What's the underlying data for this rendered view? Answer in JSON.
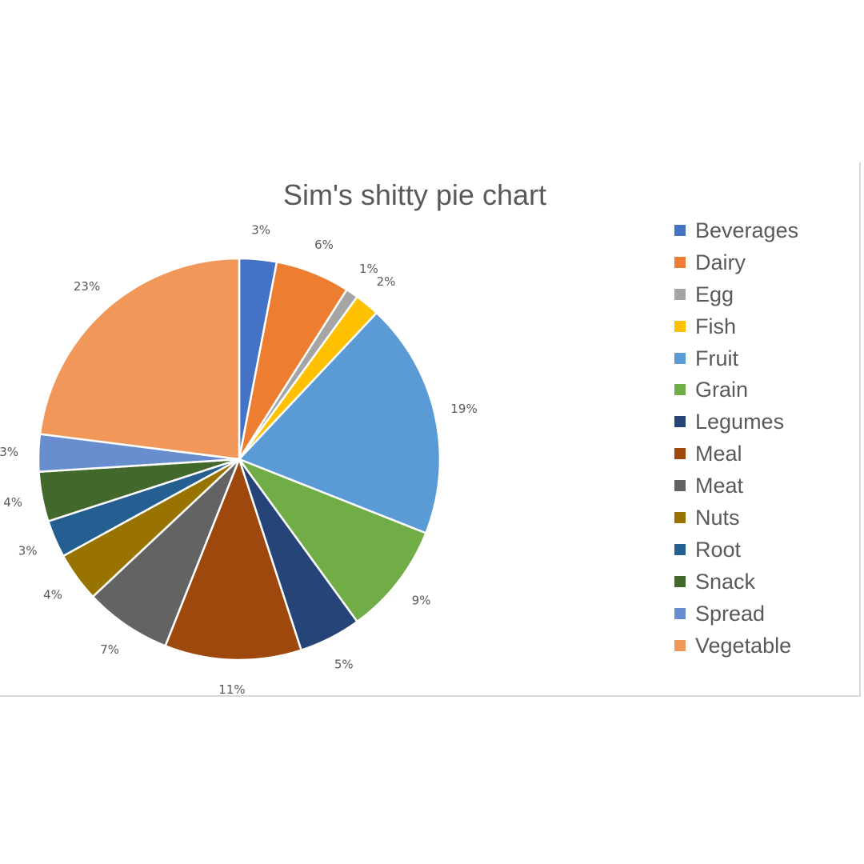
{
  "chart_data": {
    "type": "pie",
    "title": "Sim's shitty pie chart",
    "legend_position": "right",
    "start_angle_deg": 0,
    "direction": "clockwise",
    "slices": [
      {
        "label": "Beverages",
        "value": 3,
        "data_label": "3%",
        "color": "#4472C4"
      },
      {
        "label": "Dairy",
        "value": 6,
        "data_label": "6%",
        "color": "#ED7D31"
      },
      {
        "label": "Egg",
        "value": 1,
        "data_label": "1%",
        "color": "#A5A5A5"
      },
      {
        "label": "Fish",
        "value": 2,
        "data_label": "2%",
        "color": "#FFC000"
      },
      {
        "label": "Fruit",
        "value": 19,
        "data_label": "19%",
        "color": "#5B9BD5"
      },
      {
        "label": "Grain",
        "value": 9,
        "data_label": "9%",
        "color": "#70AD47"
      },
      {
        "label": "Legumes",
        "value": 5,
        "data_label": "5%",
        "color": "#264478"
      },
      {
        "label": "Meal",
        "value": 11,
        "data_label": "11%",
        "color": "#9E480E"
      },
      {
        "label": "Meat",
        "value": 7,
        "data_label": "7%",
        "color": "#636363"
      },
      {
        "label": "Nuts",
        "value": 4,
        "data_label": "4%",
        "color": "#997300"
      },
      {
        "label": "Root",
        "value": 3,
        "data_label": "3%",
        "color": "#255E91"
      },
      {
        "label": "Snack",
        "value": 4,
        "data_label": "4%",
        "color": "#43682B"
      },
      {
        "label": "Spread",
        "value": 3,
        "data_label": "3%",
        "color": "#698ED0"
      },
      {
        "label": "Vegetable",
        "value": 23,
        "data_label": "23%",
        "color": "#F1975A"
      }
    ]
  }
}
